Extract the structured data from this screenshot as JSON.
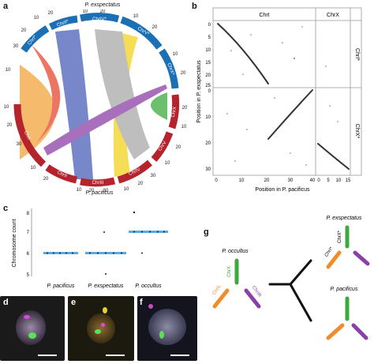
{
  "panels": {
    "a": {
      "letter": "a",
      "top_species": "P. exspectatus",
      "bottom_species": "P. pacificus",
      "chromosomes_top": [
        "ChrI*",
        "ChrII*",
        "ChrIV*",
        "ChrV*",
        "ChrX*"
      ],
      "chromosomes_bottom": [
        "ChrX",
        "ChrV",
        "ChrIV",
        "ChrIII",
        "ChrII",
        "ChrI"
      ],
      "tick_labels": [
        "10",
        "20",
        "30",
        "10",
        "20",
        "10",
        "20",
        "10",
        "20",
        "10",
        "20",
        "10",
        "20",
        "30",
        "10",
        "20",
        "10",
        "20",
        "30",
        "10",
        "20",
        "30",
        "10",
        "20",
        "10",
        "20"
      ],
      "colors": {
        "top_band": "#1a6fb5",
        "bottom_band": "#b5232d",
        "orange": "#f2a33c",
        "red": "#e8482f",
        "blue": "#4a5fb8",
        "yellow": "#f2d21e",
        "grey": "#a9a9a9",
        "purple": "#8b3fa8",
        "green": "#3caa3c"
      }
    },
    "b": {
      "letter": "b",
      "col_labels": [
        "ChrI",
        "ChrX"
      ],
      "row_labels": [
        "ChrI*",
        "ChrX*"
      ],
      "xlabel": "Position in P. pacificus",
      "ylabel": "Position in P. exspectatus",
      "x_ticks": [
        "0",
        "10",
        "20",
        "30",
        "40",
        "0",
        "5",
        "10",
        "15"
      ],
      "y_ticks_top": [
        "0",
        "5",
        "10",
        "15",
        "20",
        "25"
      ],
      "y_ticks_bottom": [
        "0",
        "10",
        "20",
        "30"
      ]
    },
    "c": {
      "letter": "c",
      "ylabel": "Chromosome count",
      "y_ticks": [
        "5",
        "6",
        "7",
        "8"
      ],
      "categories": [
        "P. pacificus",
        "P. exspectatus",
        "P. occultus"
      ]
    },
    "d": {
      "letter": "d"
    },
    "e": {
      "letter": "e"
    },
    "f": {
      "letter": "f"
    },
    "g": {
      "letter": "g",
      "occultus_label": "P. occultus",
      "occultus_chr": [
        "ChrX",
        "ChrIL",
        "ChrIR"
      ],
      "exspectatus_label": "P. exspectatus",
      "exspectatus_chr": [
        "ChrX*",
        "ChrI*"
      ],
      "pacificus_label": "P. pacificus",
      "colors": {
        "green": "#3caa3c",
        "orange": "#f28c28",
        "purple": "#8b3fa8"
      }
    }
  },
  "chart_data": [
    {
      "type": "scatter",
      "panel": "b",
      "title": "",
      "xlabel": "Position in P. pacificus",
      "ylabel": "Position in P. exspectatus",
      "series": [
        {
          "name": "ChrI vs ChrI*",
          "x": [
            0,
            5,
            10,
            15,
            20
          ],
          "y": [
            0,
            5,
            10,
            16,
            24
          ]
        },
        {
          "name": "ChrI vs ChrX*",
          "x": [
            20,
            25,
            30,
            35,
            40
          ],
          "y": [
            20,
            16,
            11,
            6,
            0
          ]
        },
        {
          "name": "ChrX vs ChrX*",
          "x": [
            0,
            5,
            10,
            15
          ],
          "y": [
            21,
            25,
            28,
            32
          ]
        }
      ]
    },
    {
      "type": "scatter",
      "panel": "c",
      "title": "",
      "xlabel": "",
      "ylabel": "Chromosome count",
      "categories": [
        "P. pacificus",
        "P. exspectatus",
        "P. occultus"
      ],
      "ylim": [
        5,
        8
      ],
      "values": [
        6,
        6,
        7
      ],
      "outliers": [
        [
          7,
          5
        ],
        [
          8,
          6
        ]
      ]
    }
  ]
}
